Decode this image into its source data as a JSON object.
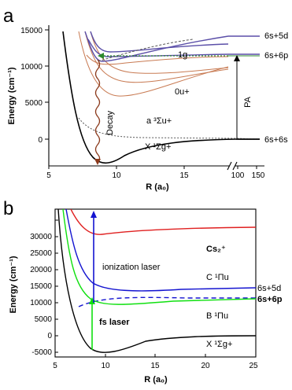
{
  "panel_a": {
    "letter": "a",
    "ylabel": "Energy (cm⁻¹)",
    "xlabel": "R (a₀)",
    "yticks": [
      "0",
      "5000",
      "10000",
      "15000"
    ],
    "xticks": [
      "5",
      "10",
      "15",
      "100",
      "150"
    ],
    "asymptotes": [
      "6s+5d",
      "6s+6p",
      "6s+6s"
    ],
    "curve_labels": {
      "one_g": "1g",
      "zero_u": "0u+",
      "a_state": "a ³Σu+",
      "X_state": "X ¹Σg+",
      "decay": "Decay",
      "pa": "PA"
    },
    "colors": {
      "pa_levels": "#5b4fa8",
      "zero_u": "#c87a52",
      "decay": "#8b3a1c",
      "dashed": "#555555",
      "green_arrow": "#2d8a2d"
    }
  },
  "panel_b": {
    "letter": "b",
    "ylabel": "Energy (cm⁻¹)",
    "xlabel": "R (a₀)",
    "yticks": [
      "-5000",
      "0",
      "5000",
      "10000",
      "15000",
      "20000",
      "25000",
      "30000"
    ],
    "xticks": [
      "5",
      "10",
      "15",
      "20",
      "25"
    ],
    "asymptotes": [
      "6s+5d",
      "6s+6p"
    ],
    "curve_labels": {
      "cs2": "Cs₂⁺",
      "C_state": "C ¹Πu",
      "B_state": "B ¹Πu",
      "X_state": "X ¹Σg+",
      "ionization": "ionization laser",
      "fs": "fs laser"
    },
    "colors": {
      "cs2": "#e02020",
      "C_state": "#1414d0",
      "B_state": "#10e010",
      "X_state": "#000000",
      "dashed": "#1414d0"
    }
  }
}
